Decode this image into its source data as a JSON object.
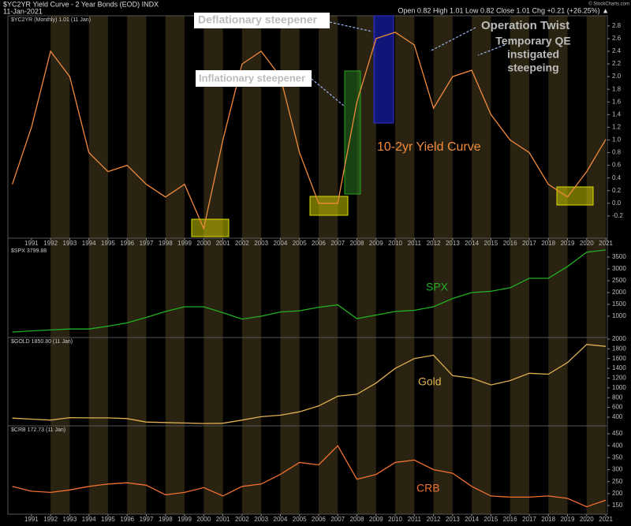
{
  "header": {
    "title": "$YC2YR Yield Curve - 2 Year Bonds (EOD) INDX",
    "date": "11-Jan-2021",
    "quote": "Open 0.82 High 1.01 Low 0.82 Close 1.01 Chg +0.21 (+26.25%) ▲",
    "credit": "© StockCharts.com"
  },
  "chart_data": [
    {
      "type": "line",
      "legend_text": "$YC2YR (Monthly) 1.01 (11 Jan)",
      "label": "10-2yr Yield Curve",
      "color": "#f08a3c",
      "annotations": [
        {
          "text": "Deflationary steepener",
          "color": "#1a1acc"
        },
        {
          "text": "Inflationary steepener",
          "color": "#2e8b1e"
        },
        {
          "text": "Operation Twist",
          "color": "#5b84e0"
        },
        {
          "lines": [
            "Temporary QE",
            "instigated",
            "steepeing"
          ],
          "color": "#5b84e0"
        }
      ],
      "x": [
        1990,
        1991,
        1992,
        1993,
        1994,
        1995,
        1996,
        1997,
        1998,
        1999,
        2000,
        2001,
        2002,
        2003,
        2004,
        2005,
        2006,
        2007,
        2008,
        2009,
        2010,
        2011,
        2012,
        2013,
        2014,
        2015,
        2016,
        2017,
        2018,
        2019,
        2020,
        2021
      ],
      "values": [
        0.3,
        1.2,
        2.4,
        2.0,
        0.8,
        0.5,
        0.6,
        0.3,
        0.1,
        0.3,
        -0.4,
        1.0,
        2.2,
        2.4,
        2.0,
        0.8,
        0.0,
        0.0,
        1.6,
        2.6,
        2.7,
        2.5,
        1.5,
        2.0,
        2.1,
        1.4,
        1.0,
        0.8,
        0.3,
        0.1,
        0.5,
        1.01
      ],
      "xlim": [
        1989.77,
        2021.08
      ],
      "xticks": [
        1991,
        1992,
        1993,
        1994,
        1995,
        1996,
        1997,
        1998,
        1999,
        2000,
        2001,
        2002,
        2003,
        2004,
        2005,
        2006,
        2007,
        2008,
        2009,
        2010,
        2011,
        2012,
        2013,
        2014,
        2015,
        2016,
        2017,
        2018,
        2019,
        2020,
        2021
      ],
      "ylim": [
        -0.55,
        2.96
      ],
      "yticks": [
        -0.2,
        {
          "value": 0,
          "label": "0.0"
        },
        0.2,
        0.4,
        0.6,
        0.8,
        {
          "value": 1,
          "label": "1.0"
        },
        1.2,
        1.4,
        1.6,
        1.8,
        {
          "value": 2,
          "label": "2.0"
        },
        2.2,
        2.4,
        2.6,
        2.8
      ]
    },
    {
      "type": "line",
      "legend_text": "$SPX 3799.88",
      "label": "SPX",
      "color": "#22b022",
      "x": [
        1990,
        1991,
        1992,
        1993,
        1994,
        1995,
        1996,
        1997,
        1998,
        1999,
        2000,
        2001,
        2002,
        2003,
        2004,
        2005,
        2006,
        2007,
        2008,
        2009,
        2010,
        2011,
        2012,
        2013,
        2014,
        2015,
        2016,
        2017,
        2018,
        2019,
        2020,
        2021
      ],
      "values": [
        330,
        380,
        420,
        460,
        460,
        580,
        720,
        950,
        1200,
        1400,
        1400,
        1150,
        880,
        1000,
        1180,
        1230,
        1380,
        1480,
        900,
        1050,
        1200,
        1250,
        1400,
        1750,
        2000,
        2050,
        2200,
        2600,
        2600,
        3100,
        3700,
        3799.88
      ],
      "xlim": [
        1989.77,
        2021.08
      ],
      "ylim": [
        100,
        3930
      ],
      "yticks": [
        1000,
        1500,
        2000,
        2500,
        3000,
        3500
      ]
    },
    {
      "type": "line",
      "legend_text": "$GOLD 1850.80 (11 Jan)",
      "label": "Gold",
      "color": "#e0b050",
      "x": [
        1990,
        1991,
        1992,
        1993,
        1994,
        1995,
        1996,
        1997,
        1998,
        1999,
        2000,
        2001,
        2002,
        2003,
        2004,
        2005,
        2006,
        2007,
        2008,
        2009,
        2010,
        2011,
        2012,
        2013,
        2014,
        2015,
        2016,
        2017,
        2018,
        2019,
        2020,
        2021
      ],
      "values": [
        380,
        360,
        340,
        390,
        385,
        385,
        370,
        300,
        290,
        280,
        270,
        275,
        340,
        410,
        440,
        510,
        630,
        830,
        870,
        1100,
        1400,
        1600,
        1670,
        1250,
        1200,
        1060,
        1150,
        1300,
        1280,
        1520,
        1890,
        1850.8
      ],
      "xlim": [
        1989.77,
        2021.08
      ],
      "ylim": [
        222,
        2032
      ],
      "yticks": [
        400,
        600,
        800,
        1000,
        1200,
        1400,
        1600,
        1800,
        2000
      ]
    },
    {
      "type": "line",
      "legend_text": "$CRB 172.73 (11 Jan)",
      "label": "CRB",
      "color": "#f07030",
      "x": [
        1990,
        1991,
        1992,
        1993,
        1994,
        1995,
        1996,
        1997,
        1998,
        1999,
        2000,
        2001,
        2002,
        2003,
        2004,
        2005,
        2006,
        2007,
        2008,
        2009,
        2010,
        2011,
        2012,
        2013,
        2014,
        2015,
        2016,
        2017,
        2018,
        2019,
        2020,
        2021
      ],
      "values": [
        230,
        210,
        205,
        215,
        230,
        240,
        245,
        235,
        195,
        205,
        225,
        190,
        230,
        240,
        280,
        330,
        320,
        400,
        260,
        280,
        330,
        340,
        300,
        285,
        230,
        190,
        185,
        185,
        190,
        180,
        145,
        172.73
      ],
      "xlim": [
        1989.77,
        2021.08
      ],
      "xticks": [
        1991,
        1992,
        1993,
        1994,
        1995,
        1996,
        1997,
        1998,
        1999,
        2000,
        2001,
        2002,
        2003,
        2004,
        2005,
        2006,
        2007,
        2008,
        2009,
        2010,
        2011,
        2012,
        2013,
        2014,
        2015,
        2016,
        2017,
        2018,
        2019,
        2020,
        2021
      ],
      "ylim": [
        114,
        483
      ],
      "yticks": [
        150,
        200,
        250,
        300,
        350,
        400,
        450
      ]
    }
  ]
}
